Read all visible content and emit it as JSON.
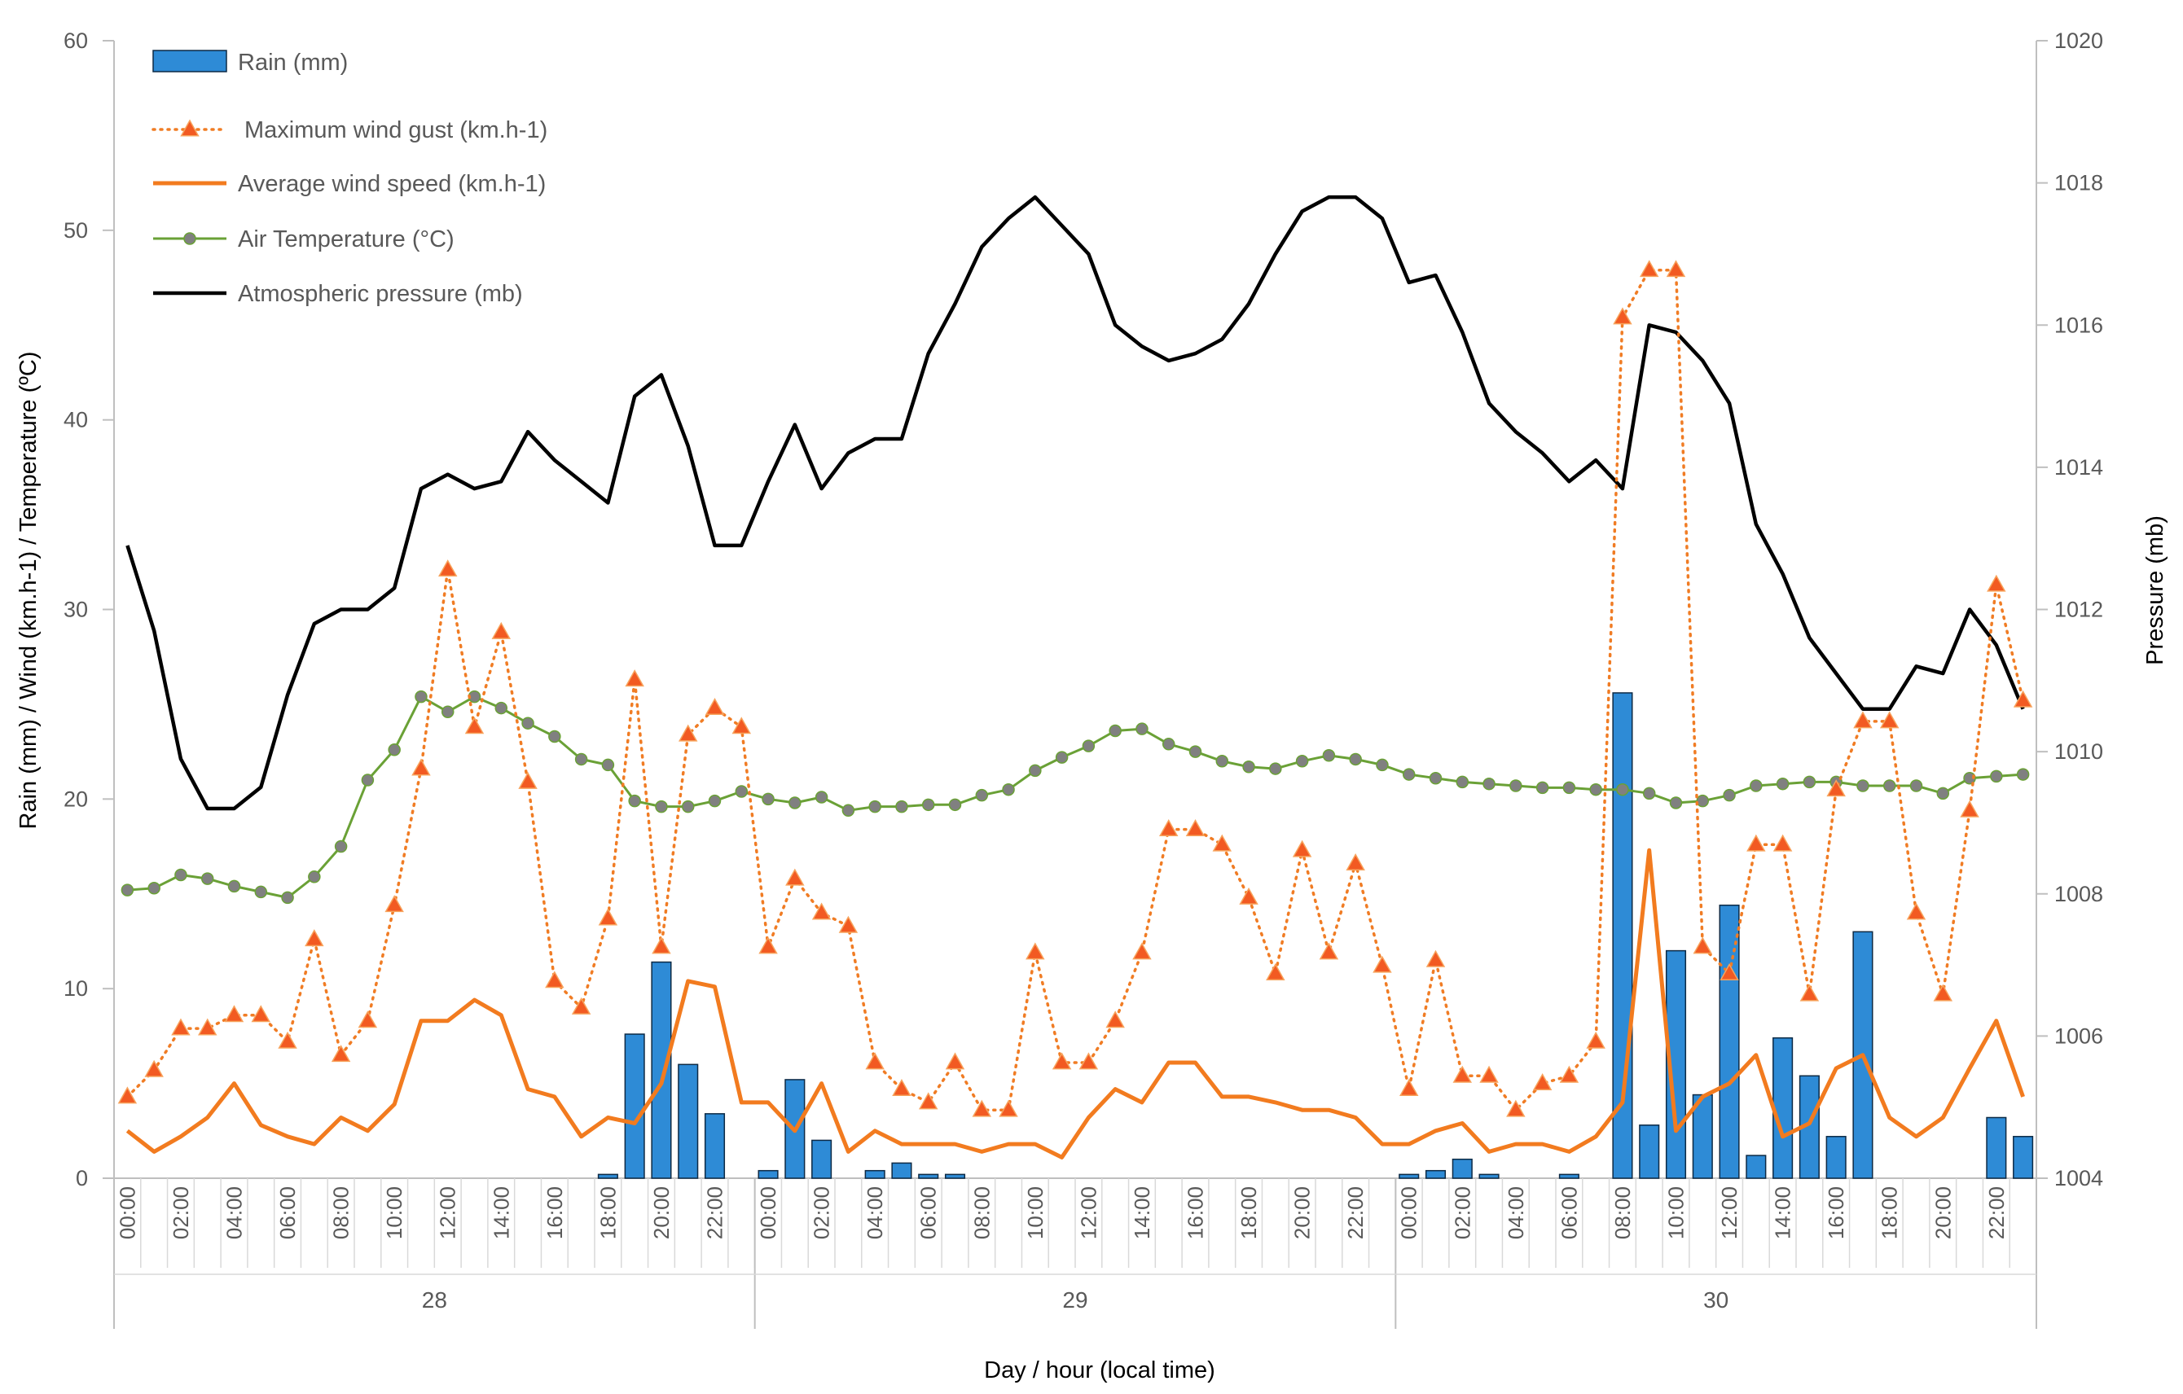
{
  "chart_data": {
    "type": "combo",
    "xlabel": "Day / hour (local time)",
    "ylabel": "Rain (mm) / Wind (km.h-1) / Temperature (ºC)",
    "y2label": "Pressure (mb)",
    "ylim": [
      0,
      60
    ],
    "y2lim": [
      1004,
      1020
    ],
    "yticks": [
      "0",
      "10",
      "20",
      "30",
      "40",
      "50",
      "60"
    ],
    "y2ticks": [
      "1004",
      "1006",
      "1008",
      "1010",
      "1012",
      "1014",
      "1016",
      "1018",
      "1020"
    ],
    "days": [
      "28",
      "29",
      "30"
    ],
    "hour_labels": [
      "00:00",
      "02:00",
      "04:00",
      "06:00",
      "08:00",
      "10:00",
      "12:00",
      "14:00",
      "16:00",
      "18:00",
      "20:00",
      "22:00"
    ],
    "grid": false,
    "legend_position": "top-left",
    "colors": {
      "rain": "#2e8bd6",
      "rain_border": "#0d2a45",
      "gust": "#f07c24",
      "gust_marker": "#f25a22",
      "wind": "#f27b1f",
      "temp": "#6aa136",
      "temp_marker": "#808080",
      "pressure": "#000000",
      "axis": "#bfbfbf"
    },
    "series": [
      {
        "name": "Rain (mm)",
        "type": "bar",
        "axis": "left",
        "values": [
          0,
          0,
          0,
          0,
          0,
          0,
          0,
          0,
          0,
          0,
          0,
          0,
          0,
          0,
          0,
          0,
          0,
          0,
          0.2,
          7.6,
          11.4,
          6,
          3.4,
          0,
          0.4,
          5.2,
          2,
          0,
          0.4,
          0.8,
          0.2,
          0.2,
          0,
          0,
          0,
          0,
          0,
          0,
          0,
          0,
          0,
          0,
          0,
          0,
          0,
          0,
          0,
          0,
          0.2,
          0.4,
          1,
          0.2,
          0,
          0,
          0.2,
          0,
          25.6,
          2.8,
          12,
          4.4,
          14.4,
          1.2,
          7.4,
          5.4,
          2.2,
          13,
          0,
          0,
          0,
          0,
          3.2,
          2.2
        ]
      },
      {
        "name": "Maximum wind gust (km.h-1)",
        "type": "line",
        "axis": "left",
        "values": [
          4.3,
          5.7,
          7.9,
          7.9,
          8.6,
          8.6,
          7.2,
          12.6,
          6.5,
          8.3,
          14.4,
          21.6,
          32.1,
          23.8,
          28.8,
          20.9,
          10.4,
          9,
          13.7,
          26.3,
          12.2,
          23.4,
          24.8,
          23.8,
          12.2,
          15.8,
          14,
          13.3,
          6.1,
          4.7,
          4,
          6.1,
          3.6,
          3.6,
          11.9,
          6.1,
          6.1,
          8.3,
          11.9,
          18.4,
          18.4,
          17.6,
          14.8,
          10.8,
          17.3,
          11.9,
          16.6,
          11.2,
          4.7,
          11.5,
          5.4,
          5.4,
          3.6,
          5,
          5.4,
          7.2,
          45.4,
          47.9,
          47.9,
          12.2,
          10.8,
          17.6,
          17.6,
          9.7,
          20.5,
          24.1,
          24.1,
          14,
          9.7,
          19.4,
          31.3,
          25.2
        ]
      },
      {
        "name": "Average wind speed (km.h-1)",
        "type": "line",
        "axis": "left",
        "values": [
          2.5,
          1.4,
          2.2,
          3.2,
          5,
          2.8,
          2.2,
          1.8,
          3.2,
          2.5,
          3.9,
          8.3,
          8.3,
          9.4,
          8.6,
          4.7,
          4.3,
          2.2,
          3.2,
          2.9,
          5,
          10.4,
          10.1,
          4,
          4,
          2.5,
          5,
          1.4,
          2.5,
          1.8,
          1.8,
          1.8,
          1.4,
          1.8,
          1.8,
          1.1,
          3.2,
          4.7,
          4,
          6.1,
          6.1,
          4.3,
          4.3,
          4,
          3.6,
          3.6,
          3.2,
          1.8,
          1.8,
          2.5,
          2.9,
          1.4,
          1.8,
          1.8,
          1.4,
          2.2,
          4,
          17.3,
          2.5,
          4.3,
          5,
          6.5,
          2.2,
          2.9,
          5.8,
          6.5,
          3.2,
          2.2,
          3.2,
          5.8,
          8.3,
          4.3
        ]
      },
      {
        "name": "Air Temperature (°C)",
        "type": "line",
        "axis": "left",
        "values": [
          15.2,
          15.3,
          16,
          15.8,
          15.4,
          15.1,
          14.8,
          15.9,
          17.5,
          21,
          22.6,
          25.4,
          24.6,
          25.4,
          24.8,
          24,
          23.3,
          22.1,
          21.8,
          19.9,
          19.6,
          19.6,
          19.9,
          20.4,
          20,
          19.8,
          20.1,
          19.4,
          19.6,
          19.6,
          19.7,
          19.7,
          20.2,
          20.5,
          21.5,
          22.2,
          22.8,
          23.6,
          23.7,
          22.9,
          22.5,
          22,
          21.7,
          21.6,
          22,
          22.3,
          22.1,
          21.8,
          21.3,
          21.1,
          20.9,
          20.8,
          20.7,
          20.6,
          20.6,
          20.5,
          20.5,
          20.3,
          19.8,
          19.9,
          20.2,
          20.7,
          20.8,
          20.9,
          20.9,
          20.7,
          20.7,
          20.7,
          20.3,
          21.1,
          21.2,
          21.3
        ]
      },
      {
        "name": "Atmospheric pressure (mb)",
        "type": "line",
        "axis": "right",
        "values": [
          1012.9,
          1011.7,
          1009.9,
          1009.2,
          1009.2,
          1009.5,
          1010.8,
          1011.8,
          1012,
          1012,
          1012.3,
          1013.7,
          1013.9,
          1013.7,
          1013.8,
          1014.5,
          1014.1,
          1013.8,
          1013.5,
          1015,
          1015.3,
          1014.3,
          1012.9,
          1012.9,
          1013.8,
          1014.6,
          1013.7,
          1014.2,
          1014.4,
          1014.4,
          1015.6,
          1016.3,
          1017.1,
          1017.5,
          1017.8,
          1017.4,
          1017,
          1016,
          1015.7,
          1015.5,
          1015.6,
          1015.8,
          1016.3,
          1017,
          1017.6,
          1017.8,
          1017.8,
          1017.5,
          1016.6,
          1016.7,
          1015.9,
          1014.9,
          1014.5,
          1014.2,
          1013.8,
          1014.1,
          1013.7,
          1016,
          1015.9,
          1015.5,
          1014.9,
          1013.2,
          1012.5,
          1011.6,
          1011.1,
          1010.6,
          1010.6,
          1011.2,
          1011.1,
          1012,
          1011.5,
          1010.6
        ]
      }
    ]
  }
}
